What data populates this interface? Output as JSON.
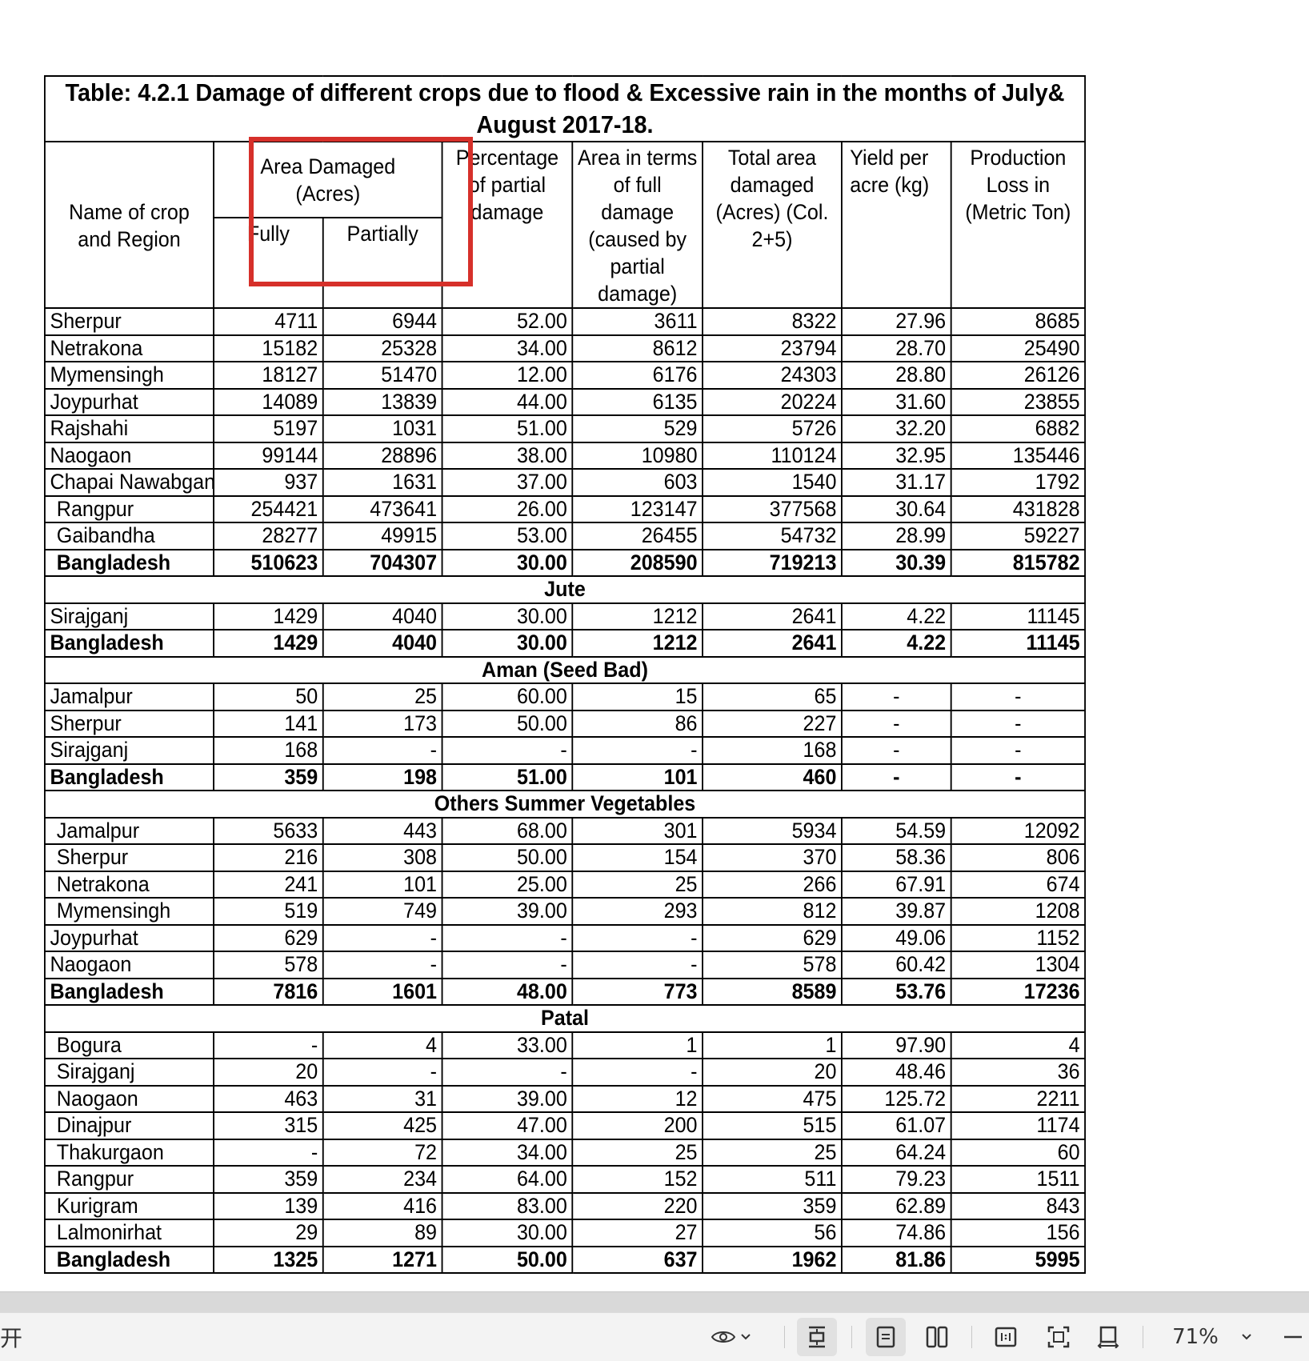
{
  "table": {
    "title": "Table: 4.2.1 Damage of different crops due to flood & Excessive rain in the months of July& August 2017-18.",
    "headers": {
      "name": "Name of crop and Region",
      "area_damaged": "Area Damaged (Acres)",
      "fully": "Fully",
      "partially": "Partially",
      "pct_partial": "Percentage of partial damage",
      "area_full_terms": "Area in terms of full damage (caused by partial damage)",
      "total_area": "Total area damaged (Acres) (Col. 2+5)",
      "yield": "Yield per acre (kg)",
      "production_loss": "Production Loss in (Metric Ton)"
    },
    "sections": [
      {
        "name": "",
        "rows": [
          {
            "region": "Sherpur",
            "indent": false,
            "cells": [
              "4711",
              "6944",
              "52.00",
              "3611",
              "8322",
              "27.96",
              "8685"
            ]
          },
          {
            "region": "Netrakona",
            "indent": false,
            "cells": [
              "15182",
              "25328",
              "34.00",
              "8612",
              "23794",
              "28.70",
              "25490"
            ]
          },
          {
            "region": "Mymensingh",
            "indent": false,
            "cells": [
              "18127",
              "51470",
              "12.00",
              "6176",
              "24303",
              "28.80",
              "26126"
            ]
          },
          {
            "region": "Joypurhat",
            "indent": false,
            "cells": [
              "14089",
              "13839",
              "44.00",
              "6135",
              "20224",
              "31.60",
              "23855"
            ]
          },
          {
            "region": "Rajshahi",
            "indent": false,
            "cells": [
              "5197",
              "1031",
              "51.00",
              "529",
              "5726",
              "32.20",
              "6882"
            ]
          },
          {
            "region": "Naogaon",
            "indent": false,
            "cells": [
              "99144",
              "28896",
              "38.00",
              "10980",
              "110124",
              "32.95",
              "135446"
            ]
          },
          {
            "region": "Chapai Nawabganj",
            "indent": false,
            "cells": [
              "937",
              "1631",
              "37.00",
              "603",
              "1540",
              "31.17",
              "1792"
            ]
          },
          {
            "region": "Rangpur",
            "indent": true,
            "cells": [
              "254421",
              "473641",
              "26.00",
              "123147",
              "377568",
              "30.64",
              "431828"
            ]
          },
          {
            "region": "Gaibandha",
            "indent": true,
            "cells": [
              "28277",
              "49915",
              "53.00",
              "26455",
              "54732",
              "28.99",
              "59227"
            ]
          }
        ],
        "total": {
          "region": "Bangladesh",
          "indent": true,
          "cells": [
            "510623",
            "704307",
            "30.00",
            "208590",
            "719213",
            "30.39",
            "815782"
          ]
        }
      },
      {
        "name": "Jute",
        "rows": [
          {
            "region": "Sirajganj",
            "indent": false,
            "cells": [
              "1429",
              "4040",
              "30.00",
              "1212",
              "2641",
              "4.22",
              "11145"
            ]
          }
        ],
        "total": {
          "region": "Bangladesh",
          "indent": false,
          "cells": [
            "1429",
            "4040",
            "30.00",
            "1212",
            "2641",
            "4.22",
            "11145"
          ]
        }
      },
      {
        "name": "Aman (Seed Bad)",
        "rows": [
          {
            "region": "Jamalpur",
            "indent": false,
            "cells": [
              "50",
              "25",
              "60.00",
              "15",
              "65",
              "-",
              "-"
            ]
          },
          {
            "region": "Sherpur",
            "indent": false,
            "cells": [
              "141",
              "173",
              "50.00",
              "86",
              "227",
              "-",
              "-"
            ]
          },
          {
            "region": "Sirajganj",
            "indent": false,
            "cells": [
              "168",
              "-",
              "-",
              "-",
              "168",
              "-",
              "-"
            ]
          }
        ],
        "total": {
          "region": "Bangladesh",
          "indent": false,
          "cells": [
            "359",
            "198",
            "51.00",
            "101",
            "460",
            "-",
            "-"
          ]
        }
      },
      {
        "name": "Others Summer Vegetables",
        "rows": [
          {
            "region": "Jamalpur",
            "indent": true,
            "cells": [
              "5633",
              "443",
              "68.00",
              "301",
              "5934",
              "54.59",
              "12092"
            ]
          },
          {
            "region": "Sherpur",
            "indent": true,
            "cells": [
              "216",
              "308",
              "50.00",
              "154",
              "370",
              "58.36",
              "806"
            ]
          },
          {
            "region": "Netrakona",
            "indent": true,
            "cells": [
              "241",
              "101",
              "25.00",
              "25",
              "266",
              "67.91",
              "674"
            ]
          },
          {
            "region": "Mymensingh",
            "indent": true,
            "cells": [
              "519",
              "749",
              "39.00",
              "293",
              "812",
              "39.87",
              "1208"
            ]
          },
          {
            "region": "Joypurhat",
            "indent": false,
            "cells": [
              "629",
              "-",
              "-",
              "-",
              "629",
              "49.06",
              "1152"
            ]
          },
          {
            "region": "Naogaon",
            "indent": false,
            "cells": [
              "578",
              "-",
              "-",
              "-",
              "578",
              "60.42",
              "1304"
            ]
          }
        ],
        "total": {
          "region": "Bangladesh",
          "indent": false,
          "cells": [
            "7816",
            "1601",
            "48.00",
            "773",
            "8589",
            "53.76",
            "17236"
          ]
        }
      },
      {
        "name": "Patal",
        "rows": [
          {
            "region": "Bogura",
            "indent": true,
            "cells": [
              "-",
              "4",
              "33.00",
              "1",
              "1",
              "97.90",
              "4"
            ]
          },
          {
            "region": "Sirajganj",
            "indent": true,
            "cells": [
              "20",
              "-",
              "-",
              "-",
              "20",
              "48.46",
              "36"
            ]
          },
          {
            "region": "Naogaon",
            "indent": true,
            "cells": [
              "463",
              "31",
              "39.00",
              "12",
              "475",
              "125.72",
              "2211"
            ]
          },
          {
            "region": "Dinajpur",
            "indent": true,
            "cells": [
              "315",
              "425",
              "47.00",
              "200",
              "515",
              "61.07",
              "1174"
            ]
          },
          {
            "region": "Thakurgaon",
            "indent": true,
            "cells": [
              "-",
              "72",
              "34.00",
              "25",
              "25",
              "64.24",
              "60"
            ]
          },
          {
            "region": "Rangpur",
            "indent": true,
            "cells": [
              "359",
              "234",
              "64.00",
              "152",
              "511",
              "79.23",
              "1511"
            ]
          },
          {
            "region": "Kurigram",
            "indent": true,
            "cells": [
              "139",
              "416",
              "83.00",
              "220",
              "359",
              "62.89",
              "843"
            ]
          },
          {
            "region": "Lalmonirhat",
            "indent": true,
            "cells": [
              "29",
              "89",
              "30.00",
              "27",
              "56",
              "74.86",
              "156"
            ]
          }
        ],
        "total": {
          "region": "Bangladesh",
          "indent": true,
          "cells": [
            "1325",
            "1271",
            "50.00",
            "637",
            "1962",
            "81.86",
            "5995"
          ]
        }
      }
    ]
  },
  "highlight_color": "#d6302a",
  "toolbar": {
    "left_glyph": "开",
    "eye_icon": "eye-icon",
    "zoom": "71%"
  }
}
